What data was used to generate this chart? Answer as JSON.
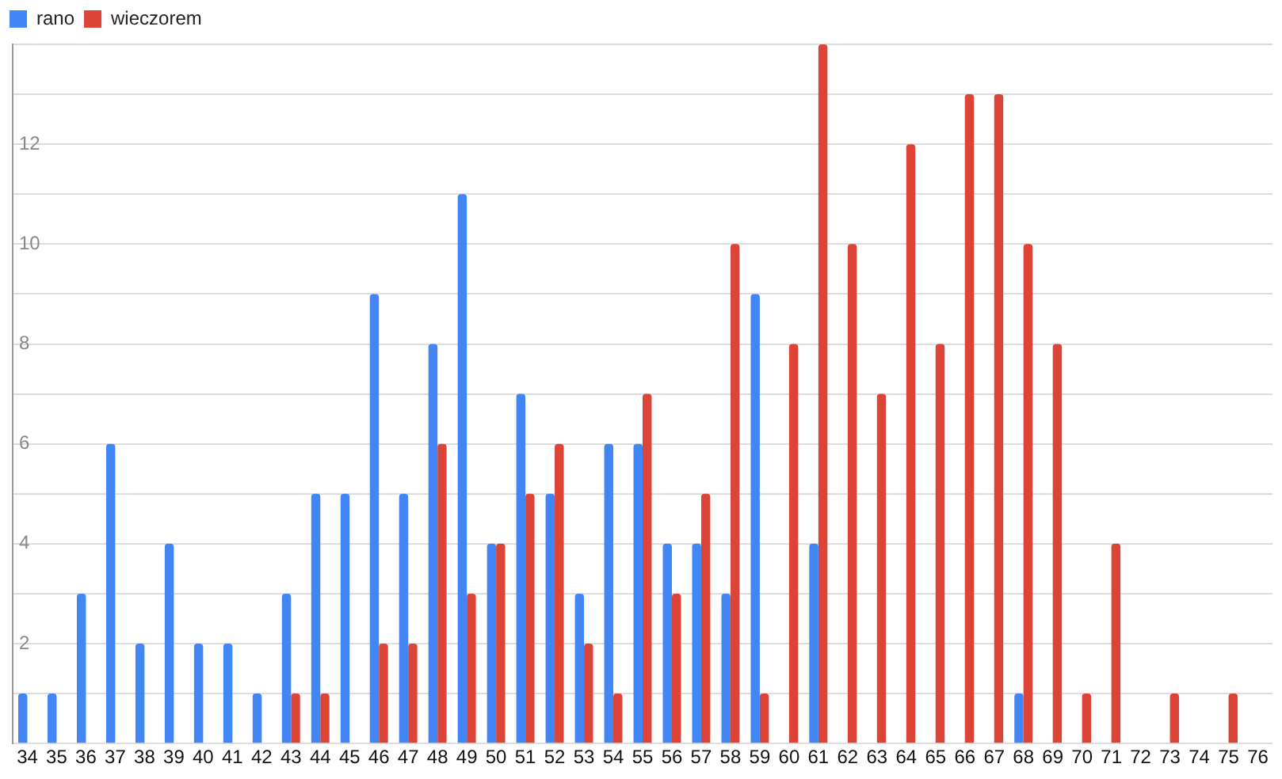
{
  "chart_data": {
    "type": "bar",
    "categories": [
      "34",
      "35",
      "36",
      "37",
      "38",
      "39",
      "40",
      "41",
      "42",
      "43",
      "44",
      "45",
      "46",
      "47",
      "48",
      "49",
      "50",
      "51",
      "52",
      "53",
      "54",
      "55",
      "56",
      "57",
      "58",
      "59",
      "60",
      "61",
      "62",
      "63",
      "64",
      "65",
      "66",
      "67",
      "68",
      "69",
      "70",
      "71",
      "72",
      "73",
      "74",
      "75",
      "76"
    ],
    "series": [
      {
        "name": "rano",
        "color": "#4285f4",
        "values": [
          1,
          1,
          3,
          6,
          2,
          4,
          2,
          2,
          1,
          3,
          5,
          5,
          9,
          5,
          8,
          11,
          4,
          7,
          5,
          3,
          6,
          6,
          4,
          4,
          3,
          9,
          0,
          4,
          0,
          0,
          0,
          0,
          0,
          0,
          1,
          0,
          0,
          0,
          0,
          0,
          0,
          0,
          0
        ]
      },
      {
        "name": "wieczorem",
        "color": "#db4437",
        "values": [
          0,
          0,
          0,
          0,
          0,
          0,
          0,
          0,
          0,
          1,
          1,
          0,
          2,
          2,
          6,
          3,
          4,
          5,
          6,
          2,
          1,
          7,
          3,
          5,
          10,
          1,
          8,
          14,
          10,
          7,
          12,
          8,
          13,
          13,
          10,
          8,
          1,
          4,
          0,
          1,
          0,
          1,
          0
        ]
      }
    ],
    "ylim": [
      0,
      14
    ],
    "yticks": [
      {
        "value": 0,
        "label": null
      },
      {
        "value": 1,
        "label": null
      },
      2,
      {
        "value": 3,
        "label": null
      },
      4,
      {
        "value": 5,
        "label": null
      },
      6,
      {
        "value": 7,
        "label": null
      },
      8,
      {
        "value": 9,
        "label": null
      },
      10,
      {
        "value": 11,
        "label": null
      },
      12,
      {
        "value": 13,
        "label": null
      },
      {
        "value": 14,
        "label": null
      }
    ],
    "grid": "y",
    "legend": "top left"
  }
}
